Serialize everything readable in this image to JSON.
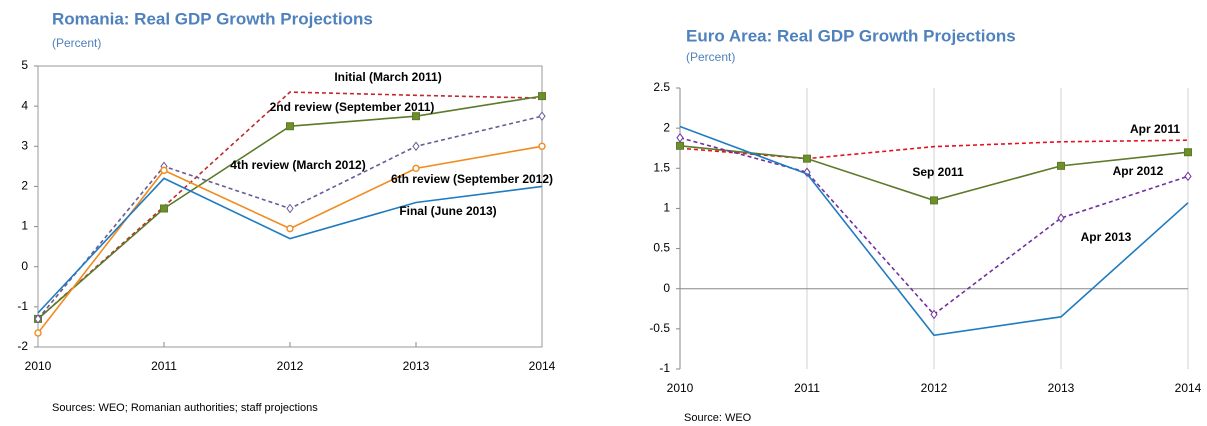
{
  "chart_data": [
    {
      "type": "line",
      "title": "Romania: Real GDP Growth Projections",
      "subtitle": "(Percent)",
      "source": "Sources: WEO; Romanian authorities; staff projections",
      "categories": [
        "2010",
        "2011",
        "2012",
        "2013",
        "2014"
      ],
      "ylim": [
        -2,
        5
      ],
      "yticks": [
        -2,
        -1,
        0,
        1,
        2,
        3,
        4,
        5
      ],
      "vertical_grid": false,
      "frame": true,
      "series": [
        {
          "name": "Initial (March 2011)",
          "color": "#c0282d",
          "dash": true,
          "marker": null,
          "values": [
            -1.3,
            1.5,
            4.35,
            4.27,
            4.2
          ]
        },
        {
          "name": "2nd review (September 2011)",
          "color": "#5b7a2a",
          "dash": false,
          "marker": "square",
          "values": [
            -1.3,
            1.45,
            3.5,
            3.75,
            4.25
          ]
        },
        {
          "name": "4th review (March 2012)",
          "color": "#6b5b95",
          "dash": true,
          "marker": "diamond",
          "values": [
            -1.3,
            2.5,
            1.45,
            3.0,
            3.75
          ]
        },
        {
          "name": "6th review (September 2012)",
          "color": "#f08c1e",
          "dash": false,
          "marker": "circle",
          "values": [
            -1.65,
            2.4,
            0.95,
            2.45,
            3.0
          ]
        },
        {
          "name": "Final (June 2013)",
          "color": "#1f7bc0",
          "dash": false,
          "marker": null,
          "values": [
            -1.15,
            2.2,
            0.7,
            1.6,
            2.0
          ]
        }
      ]
    },
    {
      "type": "line",
      "title": "Euro Area: Real GDP Growth Projections",
      "subtitle": "(Percent)",
      "source": "Source: WEO",
      "categories": [
        "2010",
        "2011",
        "2012",
        "2013",
        "2014"
      ],
      "ylim": [
        -1,
        2.5
      ],
      "yticks": [
        -1,
        -0.5,
        0,
        0.5,
        1,
        1.5,
        2,
        2.5
      ],
      "vertical_grid": true,
      "frame": false,
      "series": [
        {
          "name": "Apr 2011",
          "color": "#e0141e",
          "dash": true,
          "marker": null,
          "values": [
            1.75,
            1.62,
            1.77,
            1.83,
            1.85
          ]
        },
        {
          "name": "Sep 2011",
          "color": "#5b7a2a",
          "dash": false,
          "marker": "square",
          "values": [
            1.78,
            1.62,
            1.1,
            1.53,
            1.7
          ]
        },
        {
          "name": "Apr 2012",
          "color": "#7030a0",
          "dash": true,
          "marker": "diamond",
          "values": [
            1.88,
            1.45,
            -0.32,
            0.88,
            1.4
          ]
        },
        {
          "name": "Apr 2013",
          "color": "#1f7bc0",
          "dash": false,
          "marker": null,
          "values": [
            2.02,
            1.43,
            -0.58,
            -0.35,
            1.07
          ]
        }
      ]
    }
  ]
}
